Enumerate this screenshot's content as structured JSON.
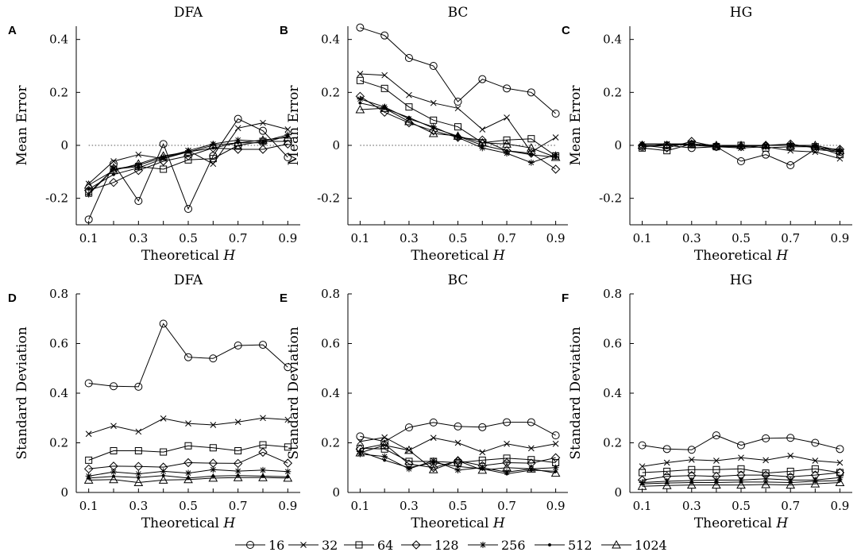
{
  "figure": {
    "x_values": [
      0.1,
      0.2,
      0.3,
      0.4,
      0.5,
      0.6,
      0.7,
      0.8,
      0.9
    ],
    "x_ticks": [
      "0.1",
      "0.3",
      "0.5",
      "0.7",
      "0.9"
    ],
    "x_label_main": "Theoretical ",
    "x_label_var": "H",
    "legend": [
      {
        "label": "16",
        "marker": "circle"
      },
      {
        "label": "32",
        "marker": "x"
      },
      {
        "label": "64",
        "marker": "square"
      },
      {
        "label": "128",
        "marker": "diamond"
      },
      {
        "label": "256",
        "marker": "star"
      },
      {
        "label": "512",
        "marker": "dot"
      },
      {
        "label": "1024",
        "marker": "triangle"
      }
    ]
  },
  "chart_data": [
    {
      "type": "line",
      "letter": "A",
      "title": "DFA",
      "ylabel": "Mean Error",
      "ylim": [
        -0.3,
        0.45
      ],
      "yticks": [
        "-0.2",
        "0",
        "0.2",
        "0.4"
      ],
      "ytick_values": [
        -0.2,
        0,
        0.2,
        0.4
      ],
      "zero_line": true,
      "series": [
        {
          "name": "16",
          "values": [
            -0.28,
            -0.07,
            -0.21,
            0.005,
            -0.24,
            -0.04,
            0.1,
            0.055,
            -0.045
          ]
        },
        {
          "name": "32",
          "values": [
            -0.145,
            -0.06,
            -0.035,
            -0.05,
            -0.02,
            -0.07,
            0.065,
            0.085,
            0.06
          ]
        },
        {
          "name": "64",
          "values": [
            -0.18,
            -0.09,
            -0.08,
            -0.09,
            -0.055,
            -0.05,
            0.0,
            0.015,
            0.015
          ]
        },
        {
          "name": "128",
          "values": [
            -0.17,
            -0.14,
            -0.095,
            -0.06,
            -0.04,
            -0.01,
            -0.015,
            -0.015,
            0.005
          ]
        },
        {
          "name": "256",
          "values": [
            -0.185,
            -0.09,
            -0.075,
            -0.045,
            -0.02,
            0.005,
            0.02,
            0.015,
            0.04
          ]
        },
        {
          "name": "512",
          "values": [
            -0.165,
            -0.11,
            -0.085,
            -0.05,
            -0.025,
            -0.01,
            0.01,
            0.01,
            0.035
          ]
        },
        {
          "name": "1024",
          "values": [
            -0.15,
            -0.095,
            -0.07,
            -0.04,
            -0.025,
            0.0,
            0.01,
            0.02,
            0.03
          ]
        }
      ]
    },
    {
      "type": "line",
      "letter": "B",
      "title": "BC",
      "ylabel": "Mean Error",
      "ylim": [
        -0.3,
        0.45
      ],
      "yticks": [
        "-0.2",
        "0",
        "0.2",
        "0.4"
      ],
      "ytick_values": [
        -0.2,
        0,
        0.2,
        0.4
      ],
      "zero_line": true,
      "series": [
        {
          "name": "16",
          "values": [
            0.445,
            0.415,
            0.33,
            0.3,
            0.165,
            0.25,
            0.215,
            0.2,
            0.12
          ]
        },
        {
          "name": "32",
          "values": [
            0.27,
            0.265,
            0.19,
            0.16,
            0.14,
            0.06,
            0.105,
            -0.025,
            0.03
          ]
        },
        {
          "name": "64",
          "values": [
            0.245,
            0.215,
            0.145,
            0.095,
            0.07,
            0.01,
            0.02,
            0.025,
            -0.04
          ]
        },
        {
          "name": "128",
          "values": [
            0.185,
            0.125,
            0.085,
            0.055,
            0.03,
            0.02,
            -0.02,
            -0.03,
            -0.09
          ]
        },
        {
          "name": "256",
          "values": [
            0.175,
            0.145,
            0.1,
            0.07,
            0.03,
            -0.01,
            -0.03,
            -0.065,
            -0.035
          ]
        },
        {
          "name": "512",
          "values": [
            0.16,
            0.14,
            0.105,
            0.065,
            0.035,
            0.0,
            -0.02,
            -0.035,
            -0.045
          ]
        },
        {
          "name": "1024",
          "values": [
            0.135,
            0.14,
            0.09,
            0.045,
            0.035,
            0.01,
            0.005,
            -0.01,
            -0.045
          ]
        }
      ]
    },
    {
      "type": "line",
      "letter": "C",
      "title": "HG",
      "ylabel": "Mean Error",
      "ylim": [
        -0.3,
        0.45
      ],
      "yticks": [
        "-0.2",
        "0",
        "0.2",
        "0.4"
      ],
      "ytick_values": [
        -0.2,
        0,
        0.2,
        0.4
      ],
      "zero_line": true,
      "series": [
        {
          "name": "16",
          "values": [
            -0.005,
            0.0,
            -0.01,
            -0.005,
            -0.06,
            -0.035,
            -0.075,
            -0.015,
            -0.025
          ]
        },
        {
          "name": "32",
          "values": [
            -0.005,
            0.005,
            0.0,
            -0.005,
            -0.01,
            -0.005,
            -0.02,
            -0.025,
            -0.05
          ]
        },
        {
          "name": "64",
          "values": [
            -0.01,
            -0.02,
            0.005,
            -0.005,
            0.0,
            -0.01,
            -0.005,
            -0.005,
            -0.035
          ]
        },
        {
          "name": "128",
          "values": [
            0.0,
            -0.01,
            0.015,
            -0.005,
            -0.005,
            0.0,
            0.005,
            -0.01,
            -0.015
          ]
        },
        {
          "name": "256",
          "values": [
            0.005,
            0.005,
            0.005,
            0.0,
            -0.005,
            0.0,
            0.0,
            -0.005,
            -0.025
          ]
        },
        {
          "name": "512",
          "values": [
            0.005,
            0.005,
            0.005,
            0.0,
            0.0,
            0.0,
            0.0,
            0.0,
            -0.02
          ]
        },
        {
          "name": "1024",
          "values": [
            0.0,
            0.0,
            0.005,
            0.0,
            0.0,
            0.0,
            0.0,
            0.0,
            -0.02
          ]
        }
      ]
    },
    {
      "type": "line",
      "letter": "D",
      "title": "DFA",
      "ylabel": "Standard Deviation",
      "ylim": [
        0,
        0.8
      ],
      "yticks": [
        "0",
        "0.2",
        "0.4",
        "0.6",
        "0.8"
      ],
      "ytick_values": [
        0,
        0.2,
        0.4,
        0.6,
        0.8
      ],
      "zero_line": false,
      "series": [
        {
          "name": "16",
          "values": [
            0.44,
            0.428,
            0.426,
            0.68,
            0.545,
            0.54,
            0.592,
            0.595,
            0.505
          ]
        },
        {
          "name": "32",
          "values": [
            0.236,
            0.268,
            0.245,
            0.298,
            0.278,
            0.272,
            0.284,
            0.3,
            0.293
          ]
        },
        {
          "name": "64",
          "values": [
            0.13,
            0.168,
            0.168,
            0.163,
            0.188,
            0.18,
            0.168,
            0.192,
            0.183
          ]
        },
        {
          "name": "128",
          "values": [
            0.095,
            0.106,
            0.105,
            0.102,
            0.12,
            0.118,
            0.117,
            0.162,
            0.118
          ]
        },
        {
          "name": "256",
          "values": [
            0.066,
            0.083,
            0.075,
            0.085,
            0.078,
            0.092,
            0.086,
            0.09,
            0.084
          ]
        },
        {
          "name": "512",
          "values": [
            0.058,
            0.065,
            0.06,
            0.068,
            0.058,
            0.066,
            0.068,
            0.066,
            0.063
          ]
        },
        {
          "name": "1024",
          "values": [
            0.05,
            0.052,
            0.04,
            0.05,
            0.052,
            0.058,
            0.06,
            0.06,
            0.058
          ]
        }
      ]
    },
    {
      "type": "line",
      "letter": "E",
      "title": "BC",
      "ylabel": "Standard Deviation",
      "ylim": [
        0,
        0.8
      ],
      "yticks": [
        "0",
        "0.2",
        "0.4",
        "0.6",
        "0.8"
      ],
      "ytick_values": [
        0,
        0.2,
        0.4,
        0.6,
        0.8
      ],
      "zero_line": false,
      "series": [
        {
          "name": "16",
          "values": [
            0.226,
            0.205,
            0.262,
            0.282,
            0.266,
            0.263,
            0.283,
            0.283,
            0.23
          ]
        },
        {
          "name": "32",
          "values": [
            0.205,
            0.222,
            0.17,
            0.22,
            0.2,
            0.162,
            0.196,
            0.178,
            0.196
          ]
        },
        {
          "name": "64",
          "values": [
            0.178,
            0.175,
            0.125,
            0.125,
            0.12,
            0.13,
            0.138,
            0.132,
            0.12
          ]
        },
        {
          "name": "128",
          "values": [
            0.175,
            0.195,
            0.115,
            0.1,
            0.128,
            0.108,
            0.12,
            0.118,
            0.14
          ]
        },
        {
          "name": "256",
          "values": [
            0.155,
            0.145,
            0.095,
            0.128,
            0.09,
            0.1,
            0.082,
            0.095,
            0.1
          ]
        },
        {
          "name": "512",
          "values": [
            0.165,
            0.13,
            0.1,
            0.12,
            0.105,
            0.095,
            0.075,
            0.09,
            0.085
          ]
        },
        {
          "name": "1024",
          "values": [
            0.16,
            0.19,
            0.17,
            0.092,
            0.128,
            0.09,
            0.1,
            0.095,
            0.078
          ]
        }
      ]
    },
    {
      "type": "line",
      "letter": "F",
      "title": "HG",
      "ylabel": "Standard Deviation",
      "ylim": [
        0,
        0.8
      ],
      "yticks": [
        "0",
        "0.2",
        "0.4",
        "0.6",
        "0.8"
      ],
      "ytick_values": [
        0,
        0.2,
        0.4,
        0.6,
        0.8
      ],
      "zero_line": false,
      "series": [
        {
          "name": "16",
          "values": [
            0.19,
            0.175,
            0.172,
            0.23,
            0.19,
            0.218,
            0.22,
            0.2,
            0.175
          ]
        },
        {
          "name": "32",
          "values": [
            0.105,
            0.12,
            0.132,
            0.128,
            0.14,
            0.13,
            0.148,
            0.128,
            0.12
          ]
        },
        {
          "name": "64",
          "values": [
            0.08,
            0.085,
            0.092,
            0.092,
            0.095,
            0.078,
            0.085,
            0.095,
            0.08
          ]
        },
        {
          "name": "128",
          "values": [
            0.05,
            0.065,
            0.068,
            0.065,
            0.07,
            0.07,
            0.063,
            0.07,
            0.08
          ]
        },
        {
          "name": "256",
          "values": [
            0.04,
            0.045,
            0.048,
            0.05,
            0.05,
            0.055,
            0.05,
            0.05,
            0.06
          ]
        },
        {
          "name": "512",
          "values": [
            0.035,
            0.038,
            0.04,
            0.04,
            0.042,
            0.042,
            0.04,
            0.045,
            0.048
          ]
        },
        {
          "name": "1024",
          "values": [
            0.025,
            0.028,
            0.03,
            0.03,
            0.03,
            0.032,
            0.03,
            0.035,
            0.04
          ]
        }
      ]
    }
  ]
}
